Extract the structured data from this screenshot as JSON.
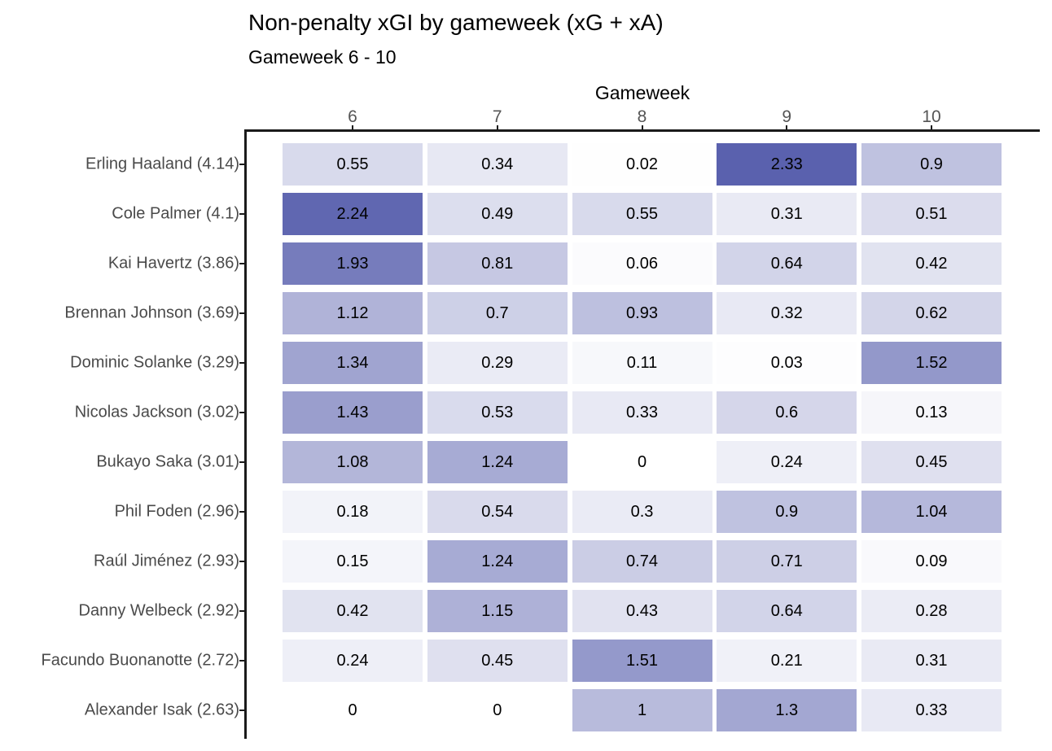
{
  "header": {
    "title": "Non-penalty xGI by gameweek (xG + xA)",
    "subtitle": "Gameweek 6 - 10"
  },
  "chart_data": {
    "type": "heatmap",
    "title": "Non-penalty xGI by gameweek (xG + xA)",
    "subtitle": "Gameweek 6 - 10",
    "x_axis_title": "Gameweek",
    "columns": [
      "6",
      "7",
      "8",
      "9",
      "10"
    ],
    "rows": [
      {
        "label": "Erling Haaland (4.14)",
        "values": [
          0.55,
          0.34,
          0.02,
          2.33,
          0.9
        ]
      },
      {
        "label": "Cole Palmer (4.1)",
        "values": [
          2.24,
          0.49,
          0.55,
          0.31,
          0.51
        ]
      },
      {
        "label": "Kai Havertz (3.86)",
        "values": [
          1.93,
          0.81,
          0.06,
          0.64,
          0.42
        ]
      },
      {
        "label": "Brennan Johnson (3.69)",
        "values": [
          1.12,
          0.7,
          0.93,
          0.32,
          0.62
        ]
      },
      {
        "label": "Dominic Solanke (3.29)",
        "values": [
          1.34,
          0.29,
          0.11,
          0.03,
          1.52
        ]
      },
      {
        "label": "Nicolas Jackson (3.02)",
        "values": [
          1.43,
          0.53,
          0.33,
          0.6,
          0.13
        ]
      },
      {
        "label": "Bukayo Saka (3.01)",
        "values": [
          1.08,
          1.24,
          0,
          0.24,
          0.45
        ]
      },
      {
        "label": "Phil Foden (2.96)",
        "values": [
          0.18,
          0.54,
          0.3,
          0.9,
          1.04
        ]
      },
      {
        "label": "Raúl Jiménez (2.93)",
        "values": [
          0.15,
          1.24,
          0.74,
          0.71,
          0.09
        ]
      },
      {
        "label": "Danny Welbeck (2.92)",
        "values": [
          0.42,
          1.15,
          0.43,
          0.64,
          0.28
        ]
      },
      {
        "label": "Facundo Buonanotte (2.72)",
        "values": [
          0.24,
          0.45,
          1.51,
          0.21,
          0.31
        ]
      },
      {
        "label": "Alexander Isak (2.63)",
        "values": [
          0,
          0,
          1,
          1.3,
          0.33
        ]
      }
    ],
    "color_scale": {
      "type": "linear",
      "domain": [
        0,
        2.33
      ],
      "low": "#ffffff",
      "high": "#5a61ae"
    },
    "colors": {
      "axis_line": "#1a1a1a",
      "x_tick_label": "#555555",
      "row_label": "#4a4a4a",
      "cell_text": "#000000",
      "title_text": "#000000"
    },
    "legend": "none",
    "grid": "off"
  }
}
